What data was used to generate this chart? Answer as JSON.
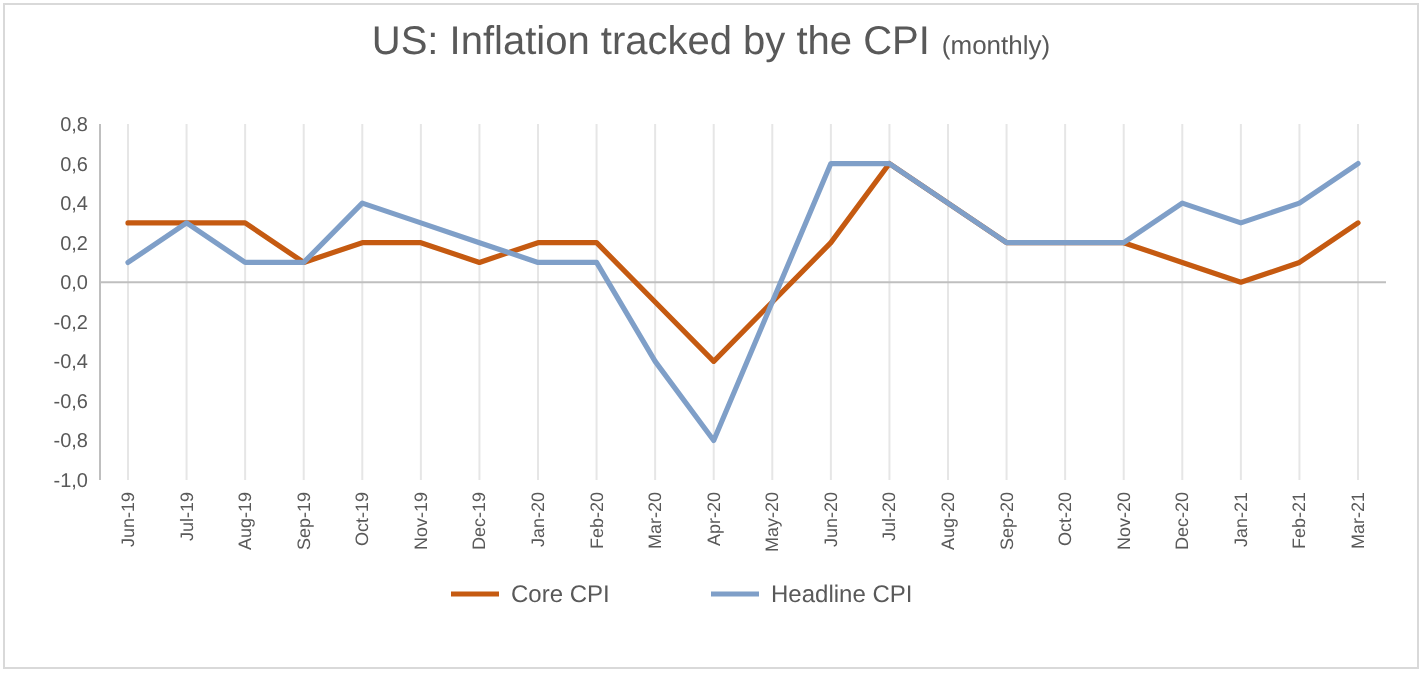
{
  "chart_data": {
    "type": "line",
    "title": "US: Inflation tracked by the CPI",
    "subtitle": "(monthly)",
    "categories": [
      "Jun-19",
      "Jul-19",
      "Aug-19",
      "Sep-19",
      "Oct-19",
      "Nov-19",
      "Dec-19",
      "Jan-20",
      "Feb-20",
      "Mar-20",
      "Apr-20",
      "May-20",
      "Jun-20",
      "Jul-20",
      "Aug-20",
      "Sep-20",
      "Oct-20",
      "Nov-20",
      "Dec-20",
      "Jan-21",
      "Feb-21",
      "Mar-21"
    ],
    "series": [
      {
        "name": "Core CPI",
        "color": "#c55a11",
        "values": [
          0.3,
          0.3,
          0.3,
          0.1,
          0.2,
          0.2,
          0.1,
          0.2,
          0.2,
          -0.1,
          -0.4,
          -0.1,
          0.2,
          0.6,
          0.4,
          0.2,
          0.2,
          0.2,
          0.1,
          0.0,
          0.1,
          0.3
        ]
      },
      {
        "name": "Headline CPI",
        "color": "#7f9fc8",
        "values": [
          0.1,
          0.3,
          0.1,
          0.1,
          0.4,
          0.3,
          0.2,
          0.1,
          0.1,
          -0.4,
          -0.8,
          -0.1,
          0.6,
          0.6,
          0.4,
          0.2,
          0.2,
          0.2,
          0.4,
          0.3,
          0.4,
          0.6
        ]
      }
    ],
    "ylim": [
      -1.0,
      0.8
    ],
    "yticks": [
      {
        "value": -1.0,
        "label": "-1,0"
      },
      {
        "value": -0.8,
        "label": "-0,8"
      },
      {
        "value": -0.6,
        "label": "-0,6"
      },
      {
        "value": -0.4,
        "label": "-0,4"
      },
      {
        "value": -0.2,
        "label": "-0,2"
      },
      {
        "value": 0,
        "label": "0,0"
      },
      {
        "value": 0.2,
        "label": "0,2"
      },
      {
        "value": 0.4,
        "label": "0,4"
      },
      {
        "value": 0.6,
        "label": "0,6"
      },
      {
        "value": 0.8,
        "label": "0,8"
      }
    ],
    "grid": "x",
    "legend": "bottom",
    "marker": "none",
    "line_style": "solid"
  }
}
